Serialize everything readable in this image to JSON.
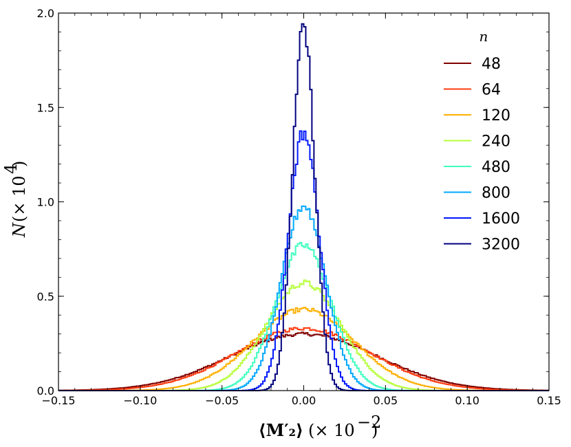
{
  "chart_data": {
    "type": "line",
    "xlabel": "⟨M′₂⟩",
    "xlabel_suffix": "(× 10",
    "xlabel_exp": "−2",
    "xlabel_close": ")",
    "ylabel": "N",
    "ylabel_suffix": "(× 10",
    "ylabel_exp": "4",
    "ylabel_close": ")",
    "xlim": [
      -0.15,
      0.15
    ],
    "ylim": [
      0.0,
      2.0
    ],
    "x_ticks": [
      -0.15,
      -0.1,
      -0.05,
      0.0,
      0.05,
      0.1,
      0.15
    ],
    "x_tick_labels": [
      "−0.15",
      "−0.10",
      "−0.05",
      "0.00",
      "0.05",
      "0.10",
      "0.15"
    ],
    "y_ticks": [
      0.0,
      0.5,
      1.0,
      1.5,
      2.0
    ],
    "y_tick_labels": [
      "0.0",
      "0.5",
      "1.0",
      "1.5",
      "2.0"
    ],
    "legend_title": "n",
    "legend_position": "top-right",
    "series": [
      {
        "name": "48",
        "color": "#7f0000",
        "peak": 0.3,
        "width": 0.045
      },
      {
        "name": "64",
        "color": "#ff3b0f",
        "peak": 0.33,
        "width": 0.041
      },
      {
        "name": "120",
        "color": "#ffb000",
        "peak": 0.43,
        "width": 0.031
      },
      {
        "name": "240",
        "color": "#b6ff3a",
        "peak": 0.57,
        "width": 0.023
      },
      {
        "name": "480",
        "color": "#3dffbf",
        "peak": 0.77,
        "width": 0.017
      },
      {
        "name": "800",
        "color": "#00a8ff",
        "peak": 0.98,
        "width": 0.0135
      },
      {
        "name": "1600",
        "color": "#0018ff",
        "peak": 1.37,
        "width": 0.0095
      },
      {
        "name": "3200",
        "color": "#00007f",
        "peak": 1.92,
        "width": 0.0068
      }
    ]
  }
}
